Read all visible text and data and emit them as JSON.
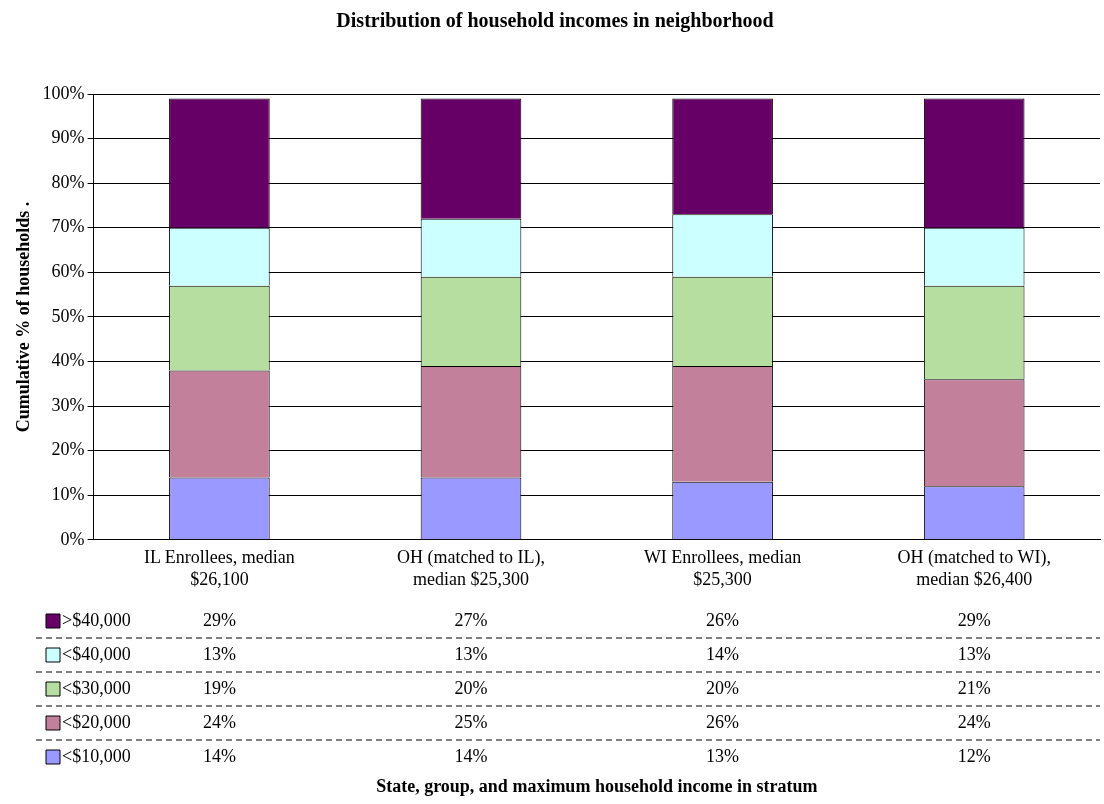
{
  "chart_data": {
    "type": "bar",
    "stacked": true,
    "title": "Distribution of household incomes in neighborhood",
    "annotations": [
      "State, group, and maximum household income in stratum"
    ],
    "ylabel": "Cumulative % of households .",
    "categories": [
      "IL Enrollees, median $26,100",
      "OH (matched to IL), median $25,300",
      "WI Enrollees, median $25,300",
      "OH (matched to WI), median $26,400"
    ],
    "series": [
      {
        "name": "<$10,000",
        "color": "#9999ff",
        "values": [
          14,
          14,
          13,
          12
        ],
        "value_labels": [
          "14%",
          "14%",
          "13%",
          "12%"
        ]
      },
      {
        "name": "<$20,000",
        "color": "#c2809a",
        "values": [
          24,
          25,
          26,
          24
        ],
        "value_labels": [
          "24%",
          "25%",
          "26%",
          "24%"
        ]
      },
      {
        "name": "<$30,000",
        "color": "#b5dea0",
        "values": [
          19,
          20,
          20,
          21
        ],
        "value_labels": [
          "19%",
          "20%",
          "20%",
          "21%"
        ]
      },
      {
        "name": "<$40,000",
        "color": "#ccffff",
        "values": [
          13,
          13,
          14,
          13
        ],
        "value_labels": [
          "13%",
          "13%",
          "14%",
          "13%"
        ]
      },
      {
        "name": ">$40,000",
        "color": "#660066",
        "values": [
          29,
          27,
          26,
          29
        ],
        "value_labels": [
          "29%",
          "27%",
          "26%",
          "29%"
        ]
      }
    ],
    "ylim": [
      0,
      100
    ],
    "yticks": [
      {
        "value": 0,
        "label": "0%"
      },
      {
        "value": 10,
        "label": "10%"
      },
      {
        "value": 20,
        "label": "20%"
      },
      {
        "value": 30,
        "label": "30%"
      },
      {
        "value": 40,
        "label": "40%"
      },
      {
        "value": 50,
        "label": "50%"
      },
      {
        "value": 60,
        "label": "60%"
      },
      {
        "value": 70,
        "label": "70%"
      },
      {
        "value": 80,
        "label": "80%"
      },
      {
        "value": 90,
        "label": "90%"
      },
      {
        "value": 100,
        "label": "100%"
      }
    ],
    "grid": "y",
    "legend": "bottom"
  }
}
